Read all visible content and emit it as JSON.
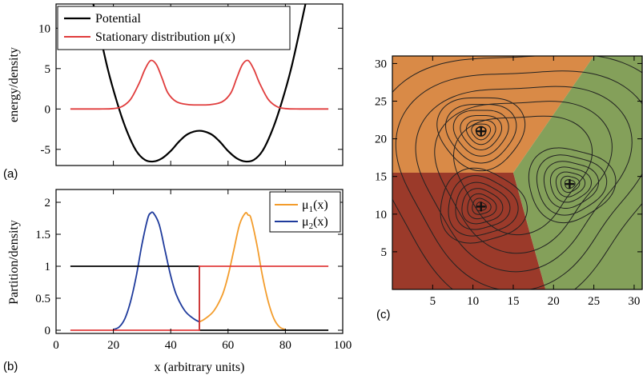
{
  "chart_data": [
    {
      "panel": "(a)",
      "type": "line",
      "title": "",
      "xlabel": "",
      "ylabel": "energy/density",
      "xlim": [
        0,
        100
      ],
      "ylim": [
        -7,
        13
      ],
      "yticks": [
        -5,
        0,
        5,
        10
      ],
      "grid": false,
      "legend_position": "top-left",
      "series": [
        {
          "name": "Potential",
          "color": "#000000",
          "x": [
            13,
            18,
            22,
            25,
            28,
            31,
            34,
            37,
            40,
            43,
            46,
            50,
            54,
            57,
            60,
            63,
            66,
            69,
            72,
            75,
            78,
            82,
            87
          ],
          "y": [
            13,
            5,
            0,
            -3,
            -5.2,
            -6.3,
            -6.5,
            -6.1,
            -5.2,
            -4,
            -3.1,
            -2.7,
            -3.1,
            -4,
            -5.2,
            -6.1,
            -6.5,
            -6.3,
            -5.2,
            -3,
            0,
            5,
            13
          ]
        },
        {
          "name": "Stationary distribution μ(x)",
          "color": "#e03c3c",
          "x": [
            5,
            15,
            20,
            23,
            26,
            29,
            31,
            33,
            35,
            37,
            39,
            42,
            46,
            50,
            54,
            58,
            61,
            63,
            65,
            67,
            69,
            71,
            74,
            77,
            80,
            85,
            95
          ],
          "y": [
            0,
            0,
            0.05,
            0.3,
            1.2,
            3.2,
            4.9,
            6,
            5.5,
            3.8,
            2,
            0.9,
            0.55,
            0.5,
            0.55,
            0.9,
            2,
            3.8,
            5.5,
            6,
            4.9,
            3.2,
            1.2,
            0.3,
            0.05,
            0,
            0
          ]
        }
      ]
    },
    {
      "panel": "(b)",
      "type": "line",
      "title": "",
      "xlabel": "x (arbitrary units)",
      "ylabel": "Partition/density",
      "xlim": [
        0,
        100
      ],
      "ylim": [
        -0.05,
        2.2
      ],
      "xticks": [
        0,
        20,
        40,
        60,
        80,
        100
      ],
      "yticks": [
        0,
        0.5,
        1,
        1.5,
        2
      ],
      "grid": false,
      "legend_position": "top-right",
      "series": [
        {
          "name": "μ1(x)",
          "color": "#f39c2b",
          "x": [
            50,
            52,
            55,
            58,
            60,
            62,
            64,
            66,
            67,
            68,
            70,
            72,
            74,
            76,
            78,
            80
          ],
          "y": [
            0.13,
            0.18,
            0.3,
            0.55,
            0.85,
            1.25,
            1.65,
            1.83,
            1.8,
            1.75,
            1.35,
            0.85,
            0.45,
            0.18,
            0.05,
            0.01
          ]
        },
        {
          "name": "μ2(x)",
          "color": "#1f3b9c",
          "x": [
            20,
            22,
            24,
            26,
            28,
            30,
            32,
            33,
            34,
            36,
            38,
            40,
            42,
            45,
            48,
            50
          ],
          "y": [
            0.01,
            0.05,
            0.18,
            0.45,
            0.85,
            1.35,
            1.75,
            1.83,
            1.83,
            1.65,
            1.25,
            0.85,
            0.55,
            0.3,
            0.18,
            0.13
          ]
        },
        {
          "name": "",
          "color": "#000000",
          "x": [
            5,
            50,
            50,
            95
          ],
          "y": [
            1,
            1,
            0,
            0
          ]
        },
        {
          "name": "",
          "color": "#e03c3c",
          "x": [
            5,
            50,
            50,
            95
          ],
          "y": [
            0,
            0,
            1,
            1
          ]
        }
      ]
    },
    {
      "panel": "(c)",
      "type": "heatmap",
      "title": "",
      "xlabel": "",
      "ylabel": "",
      "xlim": [
        0,
        31
      ],
      "ylim": [
        0,
        31
      ],
      "xticks": [
        5,
        10,
        15,
        20,
        25,
        30
      ],
      "xtick_labels": [
        "5",
        "10",
        "15",
        "20",
        "25",
        "30"
      ],
      "yticks": [
        5,
        10,
        15,
        20,
        25,
        30
      ],
      "grid": false,
      "regions": [
        {
          "color": "#d98a47",
          "polygon": [
            [
              0,
              31
            ],
            [
              25,
              31
            ],
            [
              15,
              15.5
            ],
            [
              0,
              15.5
            ]
          ]
        },
        {
          "color": "#9b3a2a",
          "polygon": [
            [
              0,
              0
            ],
            [
              19,
              0
            ],
            [
              15,
              15.5
            ],
            [
              0,
              15.5
            ]
          ]
        },
        {
          "color": "#84a05a",
          "polygon": [
            [
              19,
              0
            ],
            [
              31,
              0
            ],
            [
              31,
              31
            ],
            [
              25,
              31
            ],
            [
              15,
              15.5
            ]
          ]
        }
      ],
      "minima": [
        {
          "x": 11,
          "y": 21
        },
        {
          "x": 22,
          "y": 14
        },
        {
          "x": 11,
          "y": 11
        }
      ]
    }
  ],
  "panel_labels": [
    "(a)",
    "(b)",
    "(c)"
  ]
}
